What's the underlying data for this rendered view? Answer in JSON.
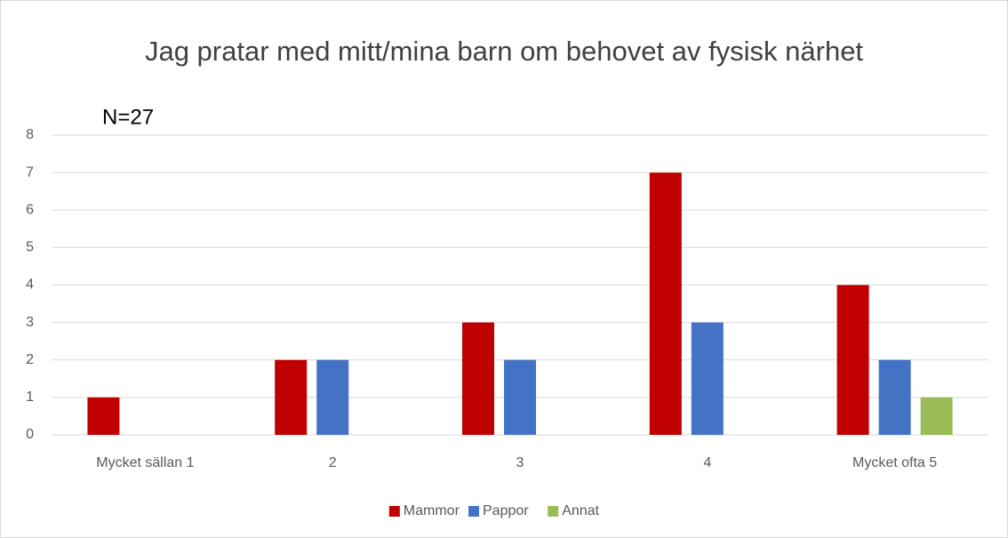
{
  "chart_data": {
    "type": "bar",
    "title": "Jag pratar med mitt/mina barn om behovet av fysisk närhet",
    "annotation": "N=27",
    "categories": [
      "Mycket sällan 1",
      "2",
      "3",
      "4",
      "Mycket ofta 5"
    ],
    "series": [
      {
        "name": "Mammor",
        "color": "#c00000",
        "values": [
          1,
          2,
          3,
          7,
          4
        ]
      },
      {
        "name": "Pappor",
        "color": "#4472c4",
        "values": [
          0,
          2,
          2,
          3,
          2
        ]
      },
      {
        "name": "Annat",
        "color": "#9bbb59",
        "values": [
          0,
          0,
          0,
          0,
          1
        ]
      }
    ],
    "ylim": [
      0,
      8
    ],
    "yticks": [
      0,
      1,
      2,
      3,
      4,
      5,
      6,
      7,
      8
    ],
    "grid": true,
    "legend": "bottom"
  }
}
